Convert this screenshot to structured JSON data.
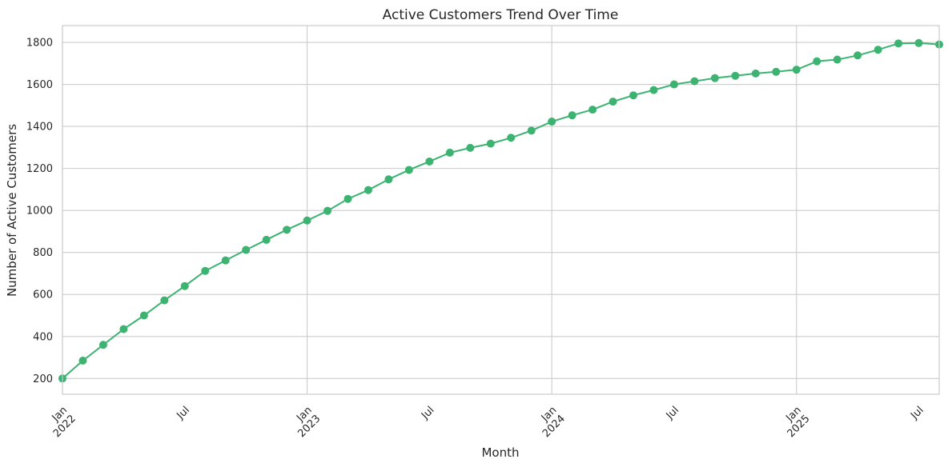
{
  "chart_data": {
    "type": "line",
    "title": "Active Customers Trend Over Time",
    "xlabel": "Month",
    "ylabel": "Number of Active Customers",
    "ylim": [
      125,
      1880
    ],
    "xlim": [
      "2022-01",
      "2025-08"
    ],
    "grid": true,
    "legend": "none",
    "color": "#3cb371",
    "yticks": [
      200,
      400,
      600,
      800,
      1000,
      1200,
      1400,
      1600,
      1800
    ],
    "xticks": [
      {
        "x": "2022-01",
        "label": "Jan",
        "sublabel": "2022"
      },
      {
        "x": "2022-07",
        "label": "Jul",
        "sublabel": ""
      },
      {
        "x": "2023-01",
        "label": "Jan",
        "sublabel": "2023"
      },
      {
        "x": "2023-07",
        "label": "Jul",
        "sublabel": ""
      },
      {
        "x": "2024-01",
        "label": "Jan",
        "sublabel": "2024"
      },
      {
        "x": "2024-07",
        "label": "Jul",
        "sublabel": ""
      },
      {
        "x": "2025-01",
        "label": "Jan",
        "sublabel": "2025"
      },
      {
        "x": "2025-07",
        "label": "Jul",
        "sublabel": ""
      }
    ],
    "x": [
      "2022-01",
      "2022-02",
      "2022-03",
      "2022-04",
      "2022-05",
      "2022-06",
      "2022-07",
      "2022-08",
      "2022-09",
      "2022-10",
      "2022-11",
      "2022-12",
      "2023-01",
      "2023-02",
      "2023-03",
      "2023-04",
      "2023-05",
      "2023-06",
      "2023-07",
      "2023-08",
      "2023-09",
      "2023-10",
      "2023-11",
      "2023-12",
      "2024-01",
      "2024-02",
      "2024-03",
      "2024-04",
      "2024-05",
      "2024-06",
      "2024-07",
      "2024-08",
      "2024-09",
      "2024-10",
      "2024-11",
      "2024-12",
      "2025-01",
      "2025-02",
      "2025-03",
      "2025-04",
      "2025-05",
      "2025-06",
      "2025-07",
      "2025-08"
    ],
    "values": [
      200,
      285,
      360,
      435,
      500,
      572,
      640,
      712,
      762,
      812,
      860,
      908,
      952,
      998,
      1055,
      1097,
      1148,
      1193,
      1233,
      1275,
      1298,
      1318,
      1346,
      1380,
      1423,
      1453,
      1480,
      1518,
      1548,
      1573,
      1600,
      1615,
      1630,
      1641,
      1652,
      1660,
      1670,
      1710,
      1718,
      1738,
      1765,
      1795,
      1797,
      1790
    ]
  }
}
